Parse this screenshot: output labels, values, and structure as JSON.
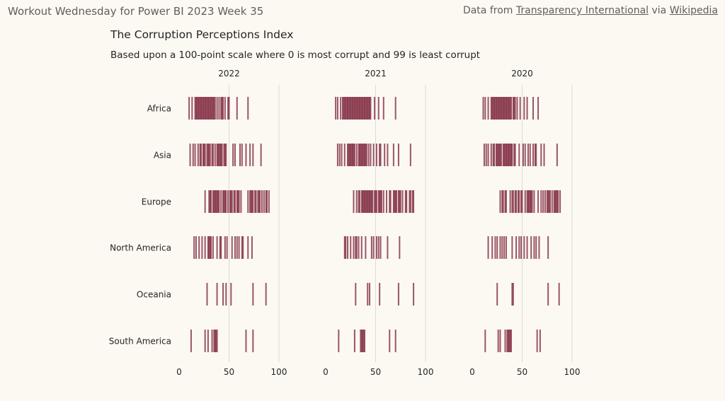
{
  "page": {
    "title": "Workout Wednesday for Power BI 2023 Week 35",
    "source": {
      "prefix": "Data from",
      "link1": "Transparency International",
      "middle": "via",
      "link2": "Wikipedia"
    }
  },
  "visual": {
    "title": "The Corruption Perceptions Index",
    "subtitle": "Based upon a 100-point scale where 0 is most corrupt and 99 is least corrupt"
  },
  "colors": {
    "bar": "#7a1f35",
    "grid": "#dcdad4",
    "text": "#252423",
    "background": "#fcf9f2"
  },
  "chart_data": {
    "type": "strip",
    "xlim": [
      0,
      100
    ],
    "xticks": [
      0,
      50,
      100
    ],
    "grid": true,
    "categories": [
      "Africa",
      "Asia",
      "Europe",
      "North America",
      "Oceania",
      "South America"
    ],
    "panels": [
      {
        "year": "2022",
        "rows": {
          "Africa": [
            10,
            13,
            16,
            17,
            18,
            19,
            20,
            21,
            22,
            23,
            24,
            25,
            26,
            27,
            28,
            29,
            30,
            31,
            32,
            33,
            34,
            35,
            36,
            38,
            40,
            42,
            43,
            44,
            46,
            49,
            50,
            58,
            69
          ],
          "Asia": [
            11,
            14,
            16,
            19,
            21,
            22,
            24,
            25,
            26,
            28,
            29,
            30,
            31,
            33,
            34,
            36,
            38,
            39,
            40,
            41,
            42,
            43,
            45,
            46,
            47,
            54,
            56,
            61,
            63,
            67,
            71,
            74,
            82
          ],
          "Europe": [
            26,
            30,
            31,
            32,
            34,
            35,
            36,
            37,
            38,
            39,
            40,
            42,
            44,
            45,
            46,
            47,
            49,
            51,
            52,
            53,
            55,
            56,
            58,
            59,
            60,
            62,
            69,
            71,
            72,
            73,
            74,
            76,
            77,
            79,
            80,
            81,
            83,
            85,
            87,
            88,
            90
          ],
          "North America": [
            15,
            17,
            20,
            23,
            26,
            29,
            30,
            31,
            32,
            34,
            38,
            41,
            42,
            46,
            48,
            53,
            56,
            58,
            60,
            63,
            64,
            69,
            73
          ],
          "Oceania": [
            28,
            38,
            44,
            47,
            52,
            74,
            87
          ],
          "South America": [
            12,
            26,
            29,
            33,
            35,
            36,
            37,
            38,
            67,
            74
          ]
        }
      },
      {
        "year": "2021",
        "rows": {
          "Africa": [
            10,
            12,
            15,
            17,
            18,
            19,
            20,
            21,
            22,
            23,
            24,
            25,
            26,
            27,
            28,
            29,
            30,
            31,
            32,
            33,
            34,
            35,
            36,
            37,
            38,
            39,
            40,
            41,
            42,
            43,
            44,
            45,
            49,
            53,
            58,
            70
          ],
          "Asia": [
            12,
            14,
            16,
            19,
            22,
            23,
            24,
            25,
            26,
            27,
            28,
            29,
            31,
            33,
            34,
            35,
            36,
            37,
            38,
            39,
            40,
            41,
            43,
            45,
            48,
            51,
            54,
            55,
            59,
            62,
            68,
            73,
            85
          ],
          "Europe": [
            28,
            31,
            33,
            34,
            36,
            37,
            38,
            39,
            40,
            41,
            42,
            43,
            44,
            45,
            46,
            47,
            49,
            50,
            51,
            53,
            54,
            55,
            56,
            58,
            61,
            64,
            65,
            68,
            69,
            70,
            71,
            73,
            74,
            75,
            77,
            80,
            81,
            84,
            85,
            87,
            88
          ],
          "North America": [
            19,
            20,
            22,
            25,
            28,
            30,
            31,
            33,
            36,
            40,
            46,
            48,
            51,
            53,
            55,
            62,
            74
          ],
          "Oceania": [
            30,
            42,
            44,
            54,
            73,
            88
          ],
          "South America": [
            13,
            29,
            35,
            36,
            37,
            38,
            39,
            64,
            70
          ]
        }
      },
      {
        "year": "2020",
        "rows": {
          "Africa": [
            11,
            13,
            16,
            19,
            20,
            21,
            22,
            23,
            24,
            25,
            26,
            27,
            28,
            29,
            30,
            31,
            32,
            33,
            34,
            35,
            36,
            37,
            38,
            39,
            41,
            42,
            43,
            45,
            48,
            52,
            55,
            61,
            66
          ],
          "Asia": [
            12,
            14,
            16,
            19,
            21,
            22,
            24,
            25,
            26,
            27,
            28,
            29,
            31,
            32,
            33,
            34,
            35,
            36,
            37,
            38,
            39,
            40,
            42,
            43,
            47,
            51,
            53,
            56,
            58,
            61,
            63,
            64,
            69,
            72,
            85
          ],
          "Europe": [
            28,
            30,
            31,
            33,
            34,
            38,
            40,
            41,
            43,
            44,
            46,
            47,
            49,
            50,
            53,
            55,
            56,
            57,
            58,
            59,
            60,
            62,
            66,
            69,
            71,
            73,
            75,
            76,
            77,
            78,
            80,
            82,
            83,
            84,
            85,
            86,
            88
          ],
          "North America": [
            16,
            20,
            23,
            25,
            28,
            30,
            32,
            34,
            40,
            44,
            47,
            49,
            52,
            55,
            59,
            62,
            64,
            67,
            76
          ],
          "Oceania": [
            25,
            40,
            41,
            76,
            87
          ],
          "South America": [
            13,
            26,
            28,
            33,
            35,
            36,
            37,
            38,
            39,
            65,
            68
          ]
        }
      }
    ]
  }
}
